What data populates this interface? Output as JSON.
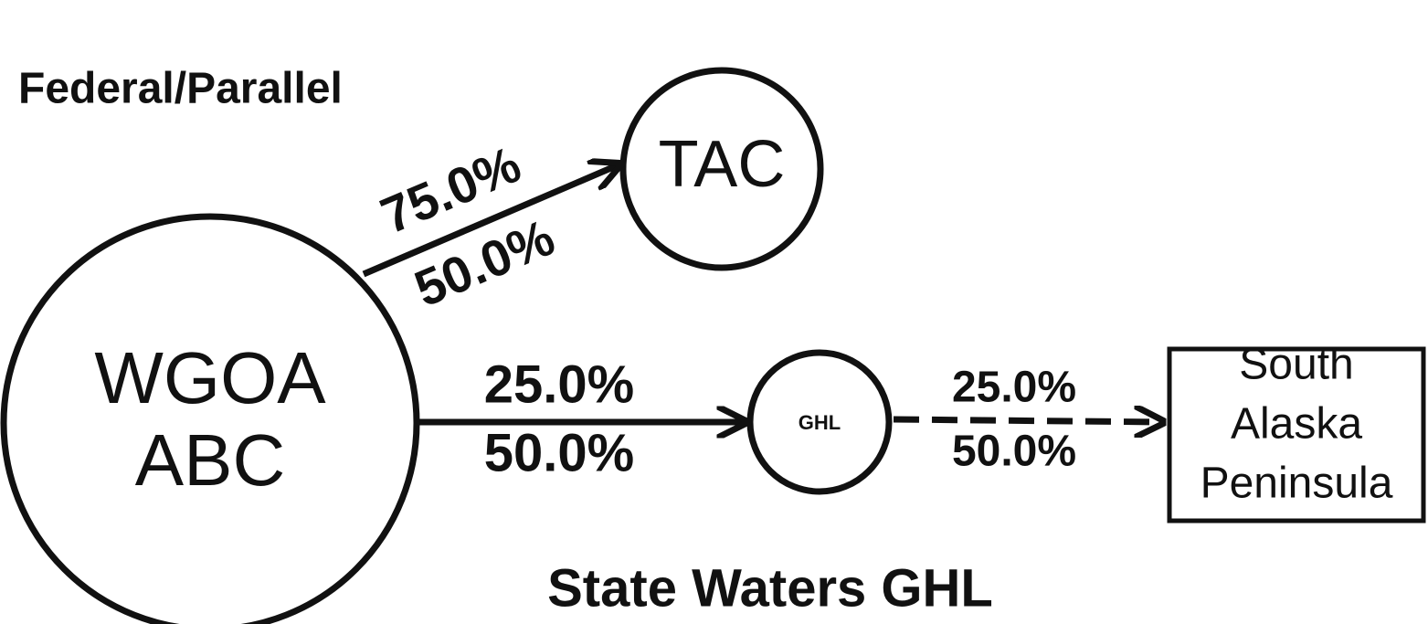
{
  "labels": {
    "federal": "Federal/Parallel",
    "state": "State Waters GHL"
  },
  "nodes": [
    {
      "lines": [
        "WGOA",
        "ABC"
      ]
    },
    {
      "lines": [
        "TAC"
      ]
    },
    {
      "lines": [
        "GHL"
      ]
    },
    {
      "lines": [
        "South",
        "Alaska",
        "Peninsula"
      ]
    }
  ],
  "edges": [
    {
      "labels": [
        "75.0%",
        "50.0%"
      ]
    },
    {
      "labels": [
        "25.0%",
        "50.0%"
      ]
    },
    {
      "labels": [
        "25.0%",
        "50.0%"
      ]
    }
  ]
}
